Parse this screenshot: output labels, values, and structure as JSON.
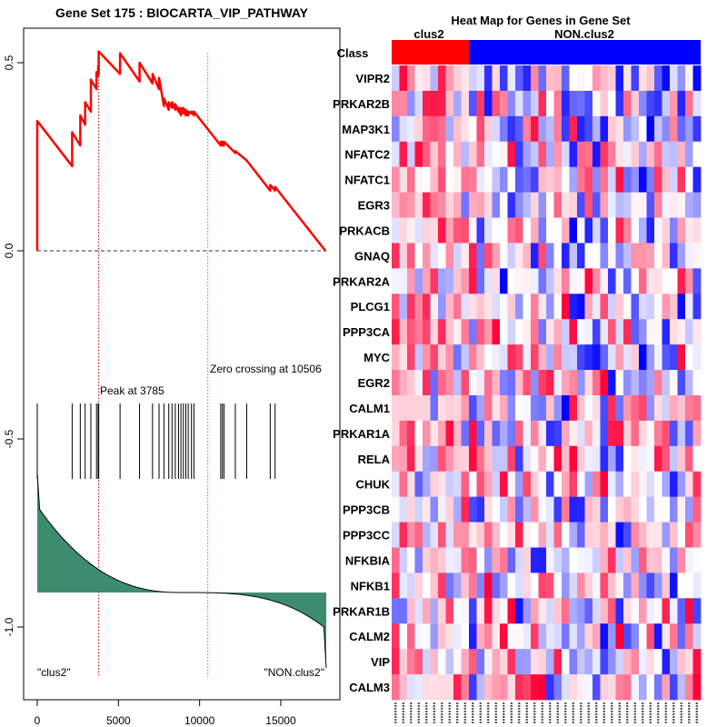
{
  "chart_data": [
    {
      "type": "line",
      "title": "Gene Set  175 : BIOCARTA_VIP_PATHWAY",
      "xlabel": "",
      "ylabel": "",
      "xlim": [
        0,
        17800
      ],
      "ylim": [
        -1.15,
        0.58
      ],
      "x_ticks": [
        0,
        5000,
        10000,
        15000
      ],
      "x_tick_labels": [
        "0",
        "5000",
        "10000",
        "15000"
      ],
      "y_ticks": [
        -1.0,
        -0.5,
        0.0,
        0.5
      ],
      "y_tick_labels": [
        "-1.0",
        "-0.5",
        "0.0",
        "0.5"
      ],
      "series": [
        {
          "name": "Running enrichment score",
          "color": "#ff0000",
          "x": [
            0,
            1,
            2150,
            2151,
            2650,
            2651,
            2950,
            2951,
            3300,
            3301,
            3650,
            3651,
            3750,
            3751,
            3785,
            3786,
            5100,
            5101,
            6300,
            6301,
            7100,
            7101,
            7500,
            7501,
            7800,
            7801,
            8100,
            8101,
            8300,
            8301,
            8500,
            8501,
            8700,
            8701,
            8850,
            8851,
            9000,
            9001,
            9150,
            9151,
            9300,
            9301,
            9500,
            9501,
            9650,
            9651,
            11300,
            11301,
            11400,
            11401,
            11500,
            11501,
            12200,
            12201,
            12900,
            12901,
            14350,
            14351,
            14650,
            14651,
            17750
          ],
          "y": [
            0.0,
            0.345,
            0.225,
            0.315,
            0.28,
            0.36,
            0.335,
            0.395,
            0.37,
            0.455,
            0.43,
            0.475,
            0.465,
            0.49,
            0.47,
            0.53,
            0.47,
            0.525,
            0.45,
            0.5,
            0.445,
            0.47,
            0.43,
            0.46,
            0.385,
            0.405,
            0.375,
            0.395,
            0.38,
            0.395,
            0.375,
            0.39,
            0.37,
            0.38,
            0.36,
            0.38,
            0.365,
            0.38,
            0.36,
            0.375,
            0.36,
            0.37,
            0.365,
            0.37,
            0.36,
            0.37,
            0.28,
            0.29,
            0.28,
            0.29,
            0.28,
            0.29,
            0.26,
            0.265,
            0.24,
            0.24,
            0.16,
            0.175,
            0.16,
            0.17,
            0.0
          ]
        }
      ],
      "gene_hit_positions": [
        2150,
        2650,
        2950,
        3300,
        3650,
        3750,
        3785,
        5100,
        6300,
        7100,
        7500,
        7800,
        8100,
        8300,
        8500,
        8700,
        8850,
        9000,
        9150,
        9300,
        9500,
        9650,
        11300,
        11400,
        11500,
        12200,
        12900,
        14350,
        14650
      ],
      "peak_position": 3785,
      "zero_crossing": 10506,
      "annotations": [
        "Peak at 3785",
        "Zero crossing at 10506",
        "\"clus2\"",
        "\"NON.clus2\""
      ]
    },
    {
      "type": "heatmap",
      "title": "Heat Map for Genes in Gene Set",
      "class_row_label": "Class",
      "class_groups": [
        {
          "name": "clus2",
          "count": 10,
          "color": "#ff0000"
        },
        {
          "name": "NON.clus2",
          "count": 30,
          "color": "#0000ff"
        }
      ],
      "rows": [
        "VIPR2",
        "PRKAR2B",
        "MAP3K1",
        "NFATC2",
        "NFATC1",
        "EGR3",
        "PRKACB",
        "GNAQ",
        "PRKAR2A",
        "PLCG1",
        "PPP3CA",
        "MYC",
        "EGR2",
        "CALM1",
        "PRKAR1A",
        "RELA",
        "CHUK",
        "PPP3CB",
        "PPP3CC",
        "NFKBIA",
        "NFKB1",
        "PRKAR1B",
        "CALM2",
        "VIP",
        "CALM3"
      ],
      "n_columns": 40,
      "color_scale": {
        "low": "#0000ff",
        "mid": "#ffffff",
        "high": "#ff0000"
      }
    }
  ]
}
